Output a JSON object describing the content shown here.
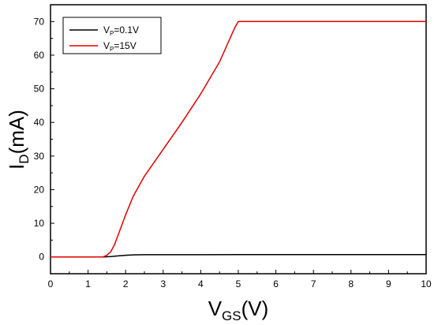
{
  "chart_data": {
    "type": "line",
    "xlabel": {
      "main": "V",
      "sub": "GS",
      "rest": "(V)"
    },
    "ylabel": {
      "main": "I",
      "sub": "D",
      "rest": "(mA)"
    },
    "xlim": [
      0,
      10
    ],
    "ylim": [
      -5,
      75
    ],
    "xticks": [
      0,
      1,
      2,
      3,
      4,
      5,
      6,
      7,
      8,
      9,
      10
    ],
    "yticks": [
      0,
      10,
      20,
      30,
      40,
      50,
      60,
      70
    ],
    "grid": false,
    "legend_position": "top-left",
    "series": [
      {
        "name": "Vp=0.1V",
        "label": {
          "main": "V",
          "sub": "P",
          "rest": "=0.1V"
        },
        "color": "#000000",
        "x": [
          0,
          1.0,
          1.4,
          1.6,
          1.8,
          2.0,
          2.2,
          2.5,
          3.0,
          4.0,
          5.0,
          6.0,
          7.0,
          8.0,
          9.0,
          10.0
        ],
        "y": [
          0,
          0,
          0,
          0.1,
          0.3,
          0.5,
          0.6,
          0.65,
          0.65,
          0.65,
          0.7,
          0.7,
          0.7,
          0.7,
          0.7,
          0.7
        ]
      },
      {
        "name": "Vp=15V",
        "label": {
          "main": "V",
          "sub": "P",
          "rest": "=15V"
        },
        "color": "#e00000",
        "x": [
          0,
          1.0,
          1.4,
          1.5,
          1.6,
          1.7,
          1.8,
          2.0,
          2.2,
          2.5,
          3.0,
          3.5,
          4.0,
          4.5,
          4.9,
          5.0,
          6.0,
          7.0,
          8.0,
          9.0,
          10.0
        ],
        "y": [
          0,
          0,
          0,
          0.5,
          1.5,
          3.5,
          6.5,
          12.5,
          18,
          24,
          32,
          40,
          48.5,
          58,
          68,
          70,
          70,
          70,
          70,
          70,
          70
        ]
      }
    ]
  }
}
